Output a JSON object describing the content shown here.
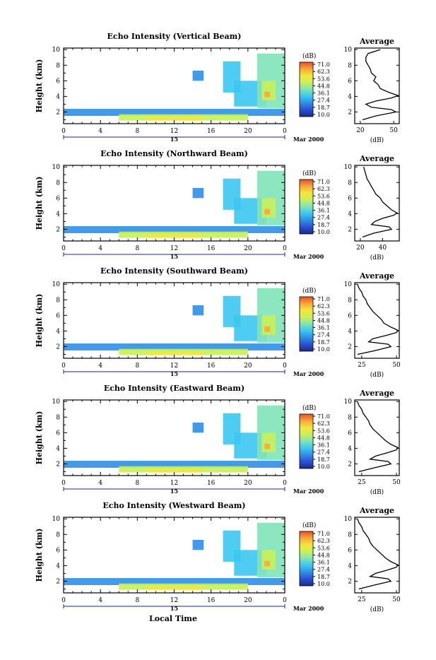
{
  "figure": {
    "panels": [
      {
        "title": "Echo Intensity (Vertical Beam)",
        "ylabel": "Height (km)",
        "cb_unit": "(dB)",
        "avg_title": "Average",
        "avg_xlabel": "(dB)",
        "avg_xticks": [
          "20",
          "50"
        ],
        "date_label": "Mar 2000"
      },
      {
        "title": "Echo Intensity (Northward Beam)",
        "ylabel": "Height (km)",
        "cb_unit": "(dB)",
        "avg_title": "Average",
        "avg_xlabel": "(dB)",
        "avg_xticks": [
          "20",
          "40"
        ],
        "date_label": "Mar 2000"
      },
      {
        "title": "Echo Intensity (Southward Beam)",
        "ylabel": "Height (km)",
        "cb_unit": "(dB)",
        "avg_title": "Average",
        "avg_xlabel": "(dB)",
        "avg_xticks": [
          "25",
          "50"
        ],
        "date_label": "Mar 2000"
      },
      {
        "title": "Echo Intensity (Eastward Beam)",
        "ylabel": "Height (km)",
        "cb_unit": "(dB)",
        "avg_title": "Average",
        "avg_xlabel": "(dB)",
        "avg_xticks": [
          "25",
          "50"
        ],
        "date_label": "Mar 2000"
      },
      {
        "title": "Echo Intensity (Westward Beam)",
        "ylabel": "Height (km)",
        "cb_unit": "(dB)",
        "avg_title": "Average",
        "avg_xlabel": "(dB)",
        "avg_xticks": [
          "25",
          "50"
        ],
        "date_label": "Mar 2000"
      }
    ],
    "xlabel": "Local Time"
  },
  "chart_data": {
    "type": "heatmap",
    "x_ticks": [
      "0",
      "4",
      "8",
      "12",
      "16",
      "20",
      "0"
    ],
    "xlim": [
      0,
      24
    ],
    "day_label": "15",
    "y_ticks": [
      "2",
      "4",
      "6",
      "8",
      "10"
    ],
    "ylim": [
      0.5,
      10.2
    ],
    "colorbar_ticks": [
      "71.0",
      "62.3",
      "53.6",
      "44.8",
      "36.1",
      "27.4",
      "18.7",
      "10.0"
    ],
    "colorbar_range": [
      10.0,
      71.0
    ],
    "colorbar_colors": [
      "#1a2a8c",
      "#2d4fd1",
      "#2f8fe6",
      "#3cc7ef",
      "#7fe3b8",
      "#c9ef5a",
      "#f4e73a",
      "#f7a83a",
      "#e5502a"
    ],
    "echo_regions": [
      {
        "t": [
          0,
          24
        ],
        "h": [
          1.5,
          2.4
        ],
        "db": 30
      },
      {
        "t": [
          6,
          20
        ],
        "h": [
          0.9,
          1.7
        ],
        "db": 45
      },
      {
        "t": [
          9,
          15
        ],
        "h": [
          0.9,
          1.3
        ],
        "db": 55
      },
      {
        "t": [
          14,
          15.2
        ],
        "h": [
          6.0,
          7.3
        ],
        "db": 30
      },
      {
        "t": [
          17.3,
          19.2
        ],
        "h": [
          4.5,
          8.5
        ],
        "db": 33
      },
      {
        "t": [
          18.5,
          22
        ],
        "h": [
          2.7,
          6.0
        ],
        "db": 36
      },
      {
        "t": [
          21,
          24
        ],
        "h": [
          2.5,
          9.5
        ],
        "db": 40
      },
      {
        "t": [
          21.5,
          23
        ],
        "h": [
          3.5,
          6.0
        ],
        "db": 50
      },
      {
        "t": [
          21.8,
          22.4
        ],
        "h": [
          3.9,
          4.6
        ],
        "db": 62
      }
    ],
    "average_profiles": [
      {
        "xlim": [
          15,
          55
        ],
        "height": [
          1.0,
          1.5,
          2.0,
          2.3,
          2.6,
          3.0,
          3.4,
          3.8,
          4.1,
          4.5,
          5.0,
          5.5,
          6.0,
          6.5,
          7.0,
          7.5,
          8.0,
          8.5,
          9.0,
          9.5,
          10.0
        ],
        "db": [
          22,
          34,
          52,
          48,
          30,
          25,
          34,
          48,
          54,
          46,
          38,
          36,
          32,
          34,
          30,
          29,
          27,
          25,
          25,
          27,
          38
        ]
      },
      {
        "xlim": [
          15,
          55
        ],
        "height": [
          1.0,
          1.5,
          2.0,
          2.3,
          2.6,
          3.0,
          3.4,
          3.8,
          4.1,
          4.5,
          5.0,
          5.5,
          6.0,
          6.5,
          7.0,
          7.5,
          8.0,
          8.5,
          9.0,
          9.5,
          10.0
        ],
        "db": [
          22,
          32,
          48,
          46,
          30,
          33,
          40,
          50,
          53,
          48,
          44,
          40,
          38,
          34,
          32,
          30,
          28,
          26,
          25,
          24,
          23
        ]
      },
      {
        "xlim": [
          20,
          52
        ],
        "height": [
          1.0,
          1.5,
          2.0,
          2.3,
          2.6,
          3.0,
          3.4,
          3.8,
          4.1,
          4.5,
          5.0,
          5.5,
          6.0,
          6.5,
          7.0,
          7.5,
          8.0,
          8.5,
          9.0,
          9.5,
          10.0
        ],
        "db": [
          22,
          35,
          46,
          44,
          30,
          33,
          42,
          50,
          51,
          46,
          41,
          39,
          36,
          33,
          31,
          29,
          28,
          26,
          25,
          23,
          22
        ]
      },
      {
        "xlim": [
          20,
          52
        ],
        "height": [
          1.0,
          1.5,
          2.0,
          2.3,
          2.6,
          3.0,
          3.4,
          3.8,
          4.1,
          4.5,
          5.0,
          5.5,
          6.0,
          6.5,
          7.0,
          7.5,
          8.0,
          8.5,
          9.0,
          9.5,
          10.0
        ],
        "db": [
          23,
          34,
          46,
          44,
          31,
          35,
          43,
          50,
          51,
          46,
          42,
          39,
          36,
          33,
          31,
          30,
          28,
          26,
          25,
          23,
          22
        ]
      },
      {
        "xlim": [
          20,
          52
        ],
        "height": [
          1.0,
          1.5,
          2.0,
          2.3,
          2.6,
          3.0,
          3.4,
          3.8,
          4.1,
          4.5,
          5.0,
          5.5,
          6.0,
          6.5,
          7.0,
          7.5,
          8.0,
          8.5,
          9.0,
          9.5,
          10.0
        ],
        "db": [
          23,
          34,
          46,
          44,
          31,
          35,
          43,
          50,
          51,
          46,
          42,
          39,
          36,
          33,
          31,
          30,
          28,
          26,
          25,
          23,
          22
        ]
      }
    ]
  }
}
